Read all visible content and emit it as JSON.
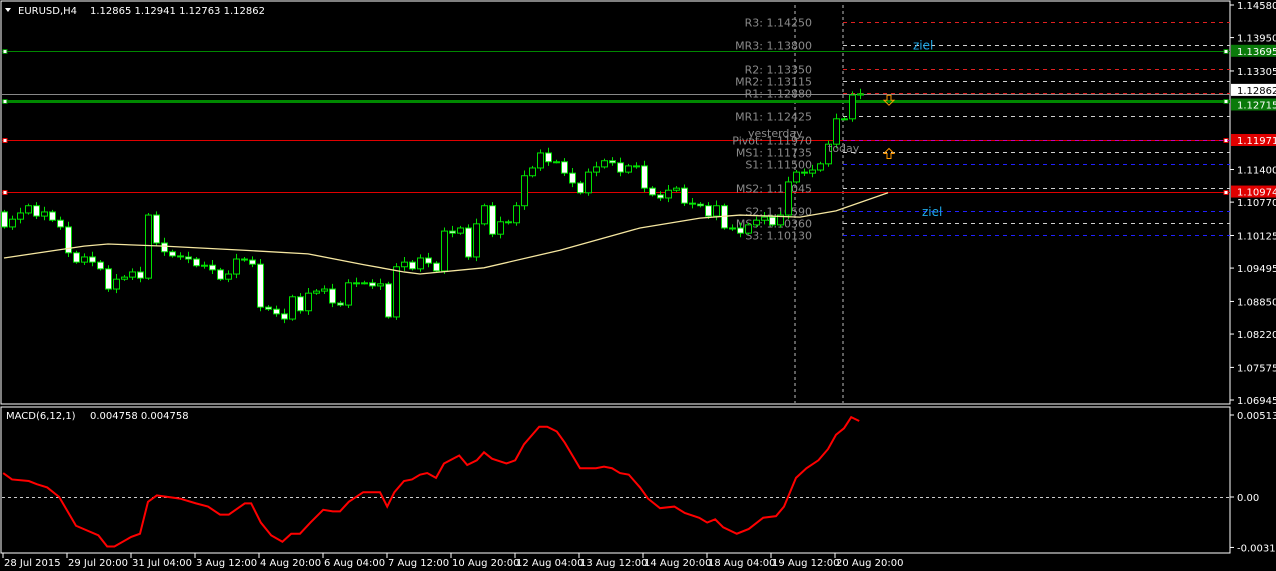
{
  "header": {
    "symbol": "EURUSD,H4",
    "ohlc": "1.12865 1.12941 1.12763 1.12862"
  },
  "macd_header": {
    "name": "MACD(6,12,1)",
    "values": "0.004758 0.004758"
  },
  "colors": {
    "background": "#000000",
    "bull_candle": "#000000",
    "bear_candle": "#ffffff",
    "candle_outline": "#00e000",
    "moving_average": "#f5e6a0",
    "macd_line": "#ff0000",
    "ziel_text": "#1fa8e8",
    "arrow": "#ff9900"
  },
  "chart_data": [
    {
      "type": "candlestick",
      "title": "EURUSD,H4",
      "ylim": [
        1.06945,
        1.1458
      ],
      "y_ticks": [
        "1.14580",
        "1.13950",
        "1.13305",
        "1.11400",
        "1.10770",
        "1.10125",
        "1.09495",
        "1.08850",
        "1.08220",
        "1.07575",
        "1.06945"
      ],
      "x_ticks": [
        "28 Jul 2015",
        "29 Jul 20:00",
        "31 Jul 04:00",
        "3 Aug 12:00",
        "4 Aug 20:00",
        "6 Aug 04:00",
        "7 Aug 12:00",
        "10 Aug 20:00",
        "12 Aug 04:00",
        "13 Aug 12:00",
        "14 Aug 20:00",
        "18 Aug 04:00",
        "19 Aug 12:00",
        "20 Aug 20:00"
      ],
      "first_open": 1.1058,
      "closes": [
        1.1029,
        1.1044,
        1.1056,
        1.107,
        1.105,
        1.1058,
        1.1042,
        1.1029,
        1.0979,
        1.0961,
        1.0971,
        1.0961,
        1.0948,
        1.0909,
        1.0928,
        1.0932,
        1.0942,
        1.093,
        1.1052,
        1.0998,
        1.0981,
        1.0973,
        1.0971,
        1.0967,
        1.0954,
        1.0955,
        1.0946,
        1.0928,
        1.0938,
        1.0967,
        1.0965,
        1.0957,
        1.0874,
        1.087,
        1.0861,
        1.0851,
        1.0894,
        1.0867,
        1.0901,
        1.0905,
        1.0909,
        1.0882,
        1.0878,
        1.0921,
        1.0921,
        1.0921,
        1.0915,
        1.0919,
        1.0855,
        1.0952,
        1.0961,
        1.0948,
        1.0969,
        1.0959,
        1.0944,
        1.1021,
        1.1017,
        1.1027,
        1.0971,
        1.1035,
        1.107,
        1.1015,
        1.1039,
        1.1037,
        1.107,
        1.1128,
        1.1143,
        1.1172,
        1.1155,
        1.1155,
        1.1133,
        1.1114,
        1.1095,
        1.1135,
        1.1145,
        1.1157,
        1.1153,
        1.1135,
        1.1147,
        1.1147,
        1.1104,
        1.1091,
        1.1085,
        1.11,
        1.1104,
        1.1075,
        1.1073,
        1.107,
        1.105,
        1.107,
        1.1027,
        1.1027,
        1.1017,
        1.1033,
        1.1042,
        1.1048,
        1.1033,
        1.1052,
        1.1116,
        1.1135,
        1.1133,
        1.1139,
        1.1151,
        1.1189,
        1.1238,
        1.1238,
        1.1284,
        1.12862
      ],
      "moving_average": [
        [
          0,
          1.0969
        ],
        [
          10,
          1.0992
        ],
        [
          13,
          1.0996
        ],
        [
          20,
          1.0992
        ],
        [
          30,
          1.0984
        ],
        [
          38,
          1.0977
        ],
        [
          45,
          1.0956
        ],
        [
          50,
          1.0942
        ],
        [
          52,
          1.0938
        ],
        [
          60,
          1.095
        ],
        [
          69.5,
          1.0984
        ],
        [
          79.5,
          1.1027
        ],
        [
          87,
          1.1046
        ],
        [
          92,
          1.1052
        ],
        [
          99.5,
          1.1048
        ],
        [
          104,
          1.106
        ],
        [
          110.5,
          1.1095
        ]
      ],
      "horizontal_lines": [
        {
          "price": 1.13695,
          "label": "1.13695",
          "color": "#008800",
          "thick": false
        },
        {
          "price": 1.12715,
          "label": "1.12715",
          "color": "#008800",
          "thick": true
        },
        {
          "price": 1.11971,
          "label": "1.11971",
          "color": "#e00000",
          "thick": false
        },
        {
          "price": 1.10974,
          "label": "1.10974",
          "color": "#e00000",
          "thick": false
        }
      ],
      "current_price": {
        "price": 1.12862,
        "label": "1.12862"
      },
      "pivots": [
        {
          "label": "R3: 1.14250",
          "price": 1.1425,
          "color": "#e02020"
        },
        {
          "label": "MR3: 1.13800",
          "price": 1.138,
          "color": "#d0d0d0"
        },
        {
          "label": "R2: 1.13350",
          "price": 1.1335,
          "color": "#e02020"
        },
        {
          "label": "MR2: 1.13115",
          "price": 1.13115,
          "color": "#d0d0d0"
        },
        {
          "label": "R1: 1.12880",
          "price": 1.1288,
          "color": "#e02020"
        },
        {
          "label": "MR1: 1.12425",
          "price": 1.12425,
          "color": "#d0d0d0"
        },
        {
          "label": "Pivot: 1.11970",
          "price": 1.1197,
          "color": "#c000c0"
        },
        {
          "label": "MS1: 1.11735",
          "price": 1.11735,
          "color": "#d0d0d0"
        },
        {
          "label": "S1: 1.11500",
          "price": 1.115,
          "color": "#2020ff"
        },
        {
          "label": "MS2: 1.11045",
          "price": 1.11045,
          "color": "#d0d0d0"
        },
        {
          "label": "S2: 1.10590",
          "price": 1.1059,
          "color": "#2020ff"
        },
        {
          "label": "MS3: 1.10360",
          "price": 1.1036,
          "color": "#d0d0d0"
        },
        {
          "label": "S3: 1.10130",
          "price": 1.1013,
          "color": "#2020ff"
        }
      ],
      "period_labels": {
        "yesterday": "yesterday",
        "today": "today"
      },
      "ziel_labels": [
        {
          "text": "ziel",
          "price": 1.138
        },
        {
          "text": "ziel",
          "price": 1.1058
        }
      ],
      "arrows": [
        {
          "direction": "down",
          "price": 1.1274
        },
        {
          "direction": "up",
          "price": 1.1171
        }
      ]
    },
    {
      "type": "line",
      "title": "MACD(6,12,1)",
      "ylim": [
        -0.003159,
        0.005135
      ],
      "y_ticks": [
        "0.005135",
        "0.00",
        "-0.003159"
      ],
      "points": [
        [
          -0.1,
          0.0015
        ],
        [
          1.0,
          0.0011
        ],
        [
          3.1,
          0.001
        ],
        [
          4.1,
          0.0008
        ],
        [
          5.4,
          0.0006
        ],
        [
          6.9,
          0
        ],
        [
          9.0,
          -0.0018
        ],
        [
          11.8,
          -0.0024
        ],
        [
          12.9,
          -0.0031
        ],
        [
          13.8,
          -0.0031
        ],
        [
          15.9,
          -0.0025
        ],
        [
          17.0,
          -0.0023
        ],
        [
          18.0,
          -0.0003
        ],
        [
          19.1,
          0.0001
        ],
        [
          22.0,
          -0.0001
        ],
        [
          24.0,
          -0.0004
        ],
        [
          25.5,
          -0.0006
        ],
        [
          27.0,
          -0.0011
        ],
        [
          28.1,
          -0.0011
        ],
        [
          30.1,
          -0.0004
        ],
        [
          30.9,
          -0.0004
        ],
        [
          32.1,
          -0.0016
        ],
        [
          33.4,
          -0.0024
        ],
        [
          34.8,
          -0.0028
        ],
        [
          35.9,
          -0.0023
        ],
        [
          37.0,
          -0.0023
        ],
        [
          38.3,
          -0.0016
        ],
        [
          39.9,
          -0.0008
        ],
        [
          41.1,
          -0.0009
        ],
        [
          42.0,
          -0.0009
        ],
        [
          43.1,
          -0.0003
        ],
        [
          44.9,
          0.0003
        ],
        [
          47.0,
          0.0003
        ],
        [
          47.9,
          -0.0006
        ],
        [
          48.8,
          0.0003
        ],
        [
          50.0,
          0.001
        ],
        [
          51.0,
          0.0011
        ],
        [
          52.0,
          0.0014
        ],
        [
          52.9,
          0.0015
        ],
        [
          54.0,
          0.0012
        ],
        [
          55.0,
          0.0021
        ],
        [
          56.9,
          0.0026
        ],
        [
          57.9,
          0.002
        ],
        [
          59.1,
          0.0023
        ],
        [
          60.0,
          0.0028
        ],
        [
          61.0,
          0.0024
        ],
        [
          62.8,
          0.0021
        ],
        [
          63.9,
          0.0023
        ],
        [
          65.0,
          0.0033
        ],
        [
          66.9,
          0.0044
        ],
        [
          67.9,
          0.0044
        ],
        [
          69.1,
          0.0041
        ],
        [
          70.1,
          0.0034
        ],
        [
          72.0,
          0.0018
        ],
        [
          74.0,
          0.0018
        ],
        [
          75.0,
          0.0019
        ],
        [
          76.0,
          0.0018
        ],
        [
          77.0,
          0.0015
        ],
        [
          78.1,
          0.0014
        ],
        [
          79.5,
          0.0006
        ],
        [
          80.5,
          -0.0001
        ],
        [
          82.0,
          -0.0007
        ],
        [
          83.8,
          -0.0006
        ],
        [
          85.1,
          -0.001
        ],
        [
          86.9,
          -0.0013
        ],
        [
          87.9,
          -0.0016
        ],
        [
          88.9,
          -0.0014
        ],
        [
          89.9,
          -0.0019
        ],
        [
          91.6,
          -0.0023
        ],
        [
          93.1,
          -0.002
        ],
        [
          94.9,
          -0.0013
        ],
        [
          96.5,
          -0.0012
        ],
        [
          97.5,
          -0.0006
        ],
        [
          99.0,
          0.0012
        ],
        [
          100.3,
          0.0018
        ],
        [
          101.8,
          0.0023
        ],
        [
          103.0,
          0.003
        ],
        [
          104.0,
          0.0039
        ],
        [
          105.0,
          0.0043
        ],
        [
          105.9,
          0.005
        ],
        [
          106.9,
          0.004758
        ]
      ]
    }
  ]
}
